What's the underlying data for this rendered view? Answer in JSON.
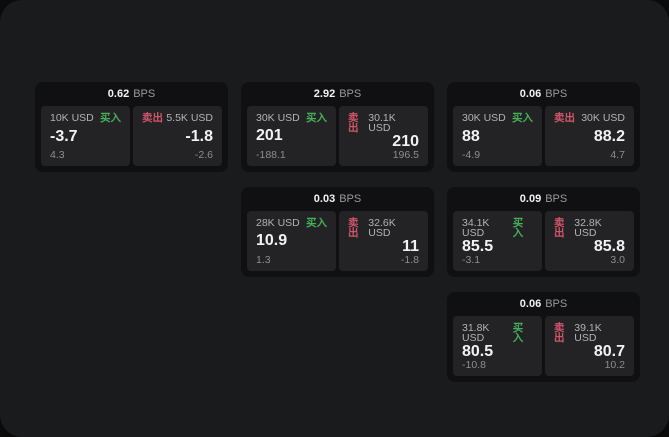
{
  "labels": {
    "bps_unit": "BPS",
    "buy": "买入",
    "sell": "卖出"
  },
  "colors": {
    "page_bg": "#1a1b1c",
    "card_bg": "#101012",
    "panel_bg": "#232325",
    "buy": "#45b05b",
    "sell": "#d25568"
  },
  "cards": [
    {
      "bps": "0.62",
      "buy": {
        "amount": "10K USD",
        "price": "-3.7",
        "change": "4.3"
      },
      "sell": {
        "amount": "5.5K USD",
        "price": "-1.8",
        "change": "-2.6"
      }
    },
    {
      "bps": "2.92",
      "buy": {
        "amount": "30K USD",
        "price": "201",
        "change": "-188.1"
      },
      "sell": {
        "amount": "30.1K USD",
        "price": "210",
        "change": "196.5"
      }
    },
    {
      "bps": "0.06",
      "buy": {
        "amount": "30K USD",
        "price": "88",
        "change": "-4.9"
      },
      "sell": {
        "amount": "30K USD",
        "price": "88.2",
        "change": "4.7"
      }
    },
    {
      "bps": "0.03",
      "buy": {
        "amount": "28K USD",
        "price": "10.9",
        "change": "1.3"
      },
      "sell": {
        "amount": "32.6K USD",
        "price": "11",
        "change": "-1.8"
      }
    },
    {
      "bps": "0.09",
      "buy": {
        "amount": "34.1K USD",
        "price": "85.5",
        "change": "-3.1"
      },
      "sell": {
        "amount": "32.8K USD",
        "price": "85.8",
        "change": "3.0"
      }
    },
    {
      "bps": "0.06",
      "buy": {
        "amount": "31.8K USD",
        "price": "80.5",
        "change": "-10.8"
      },
      "sell": {
        "amount": "39.1K USD",
        "price": "80.7",
        "change": "10.2"
      }
    }
  ]
}
